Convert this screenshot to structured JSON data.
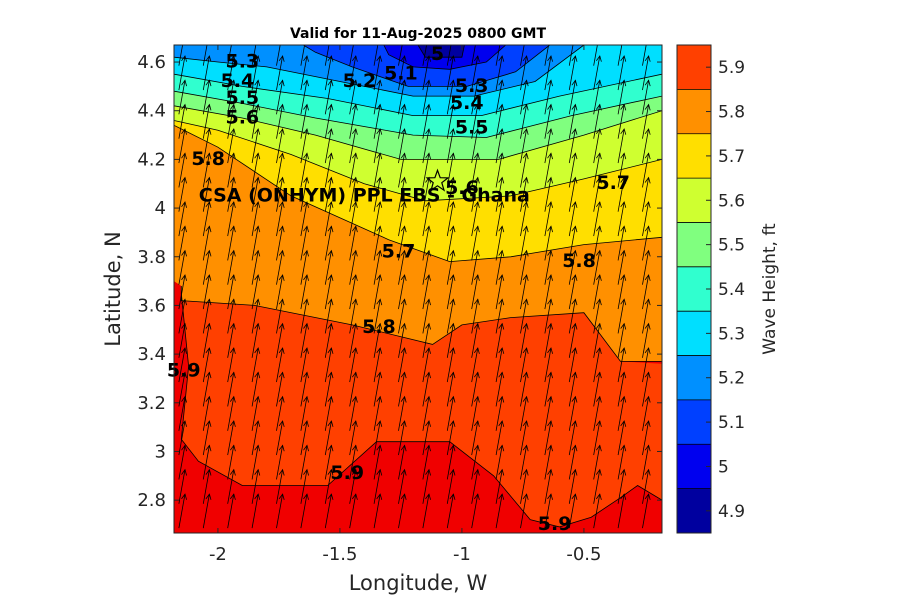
{
  "chart_data": {
    "type": "contour",
    "title": "Valid for 11-Aug-2025 0800 GMT",
    "xlabel": "Longitude, W",
    "ylabel": "Latitude, N",
    "colorbar_label": "Wave Height, ft",
    "xlim": [
      -2.18,
      -0.18
    ],
    "ylim": [
      2.665,
      4.67
    ],
    "x_ticks": [
      -2,
      -1.5,
      -1,
      -0.5
    ],
    "x_tick_labels": [
      "-2",
      "-1.5",
      "-1",
      "-0.5"
    ],
    "y_ticks": [
      2.8,
      3,
      3.2,
      3.4,
      3.6,
      3.8,
      4,
      4.2,
      4.4,
      4.6
    ],
    "y_tick_labels": [
      "2.8",
      "3",
      "3.2",
      "3.4",
      "3.6",
      "3.8",
      "4",
      "4.2",
      "4.4",
      "4.6"
    ],
    "colorbar_ticks": [
      "4.9",
      "5",
      "5.1",
      "5.2",
      "5.3",
      "5.4",
      "5.5",
      "5.6",
      "5.7",
      "5.8",
      "5.9"
    ],
    "colorbar_levels": [
      4.85,
      4.95,
      5.05,
      5.15,
      5.25,
      5.35,
      5.45,
      5.55,
      5.65,
      5.75,
      5.85,
      5.95
    ],
    "colormap": [
      "#00009f",
      "#0000ef",
      "#0040ff",
      "#0090ff",
      "#00dfff",
      "#30ffcf",
      "#80ff7f",
      "#cfff30",
      "#ffdf00",
      "#ff9000",
      "#ff4000",
      "#f00000"
    ],
    "contour_bands": [
      {
        "level": 5.0,
        "color": "#00009f",
        "polygon": [
          [
            -1.18,
            4.67
          ],
          [
            -0.99,
            4.67
          ],
          [
            -1.0,
            4.62
          ],
          [
            -1.15,
            4.62
          ]
        ]
      },
      {
        "level": 5.1,
        "color": "#0000ef",
        "polygon": [
          [
            -1.32,
            4.67
          ],
          [
            -0.82,
            4.67
          ],
          [
            -0.9,
            4.6
          ],
          [
            -1.05,
            4.57
          ],
          [
            -1.2,
            4.58
          ],
          [
            -1.3,
            4.63
          ]
        ]
      },
      {
        "level": 5.2,
        "color": "#0040ff",
        "polygon": [
          [
            -1.65,
            4.67
          ],
          [
            -0.64,
            4.67
          ],
          [
            -0.78,
            4.56
          ],
          [
            -0.98,
            4.5
          ],
          [
            -1.22,
            4.5
          ],
          [
            -1.45,
            4.58
          ],
          [
            -1.6,
            4.64
          ]
        ]
      },
      {
        "level": 5.3,
        "color": "#0090ff",
        "polygon": [
          [
            -2.18,
            4.67
          ],
          [
            -0.5,
            4.67
          ],
          [
            -0.7,
            4.52
          ],
          [
            -0.95,
            4.46
          ],
          [
            -1.2,
            4.46
          ],
          [
            -1.5,
            4.52
          ],
          [
            -1.8,
            4.58
          ],
          [
            -2.0,
            4.6
          ],
          [
            -2.18,
            4.62
          ]
        ]
      },
      {
        "level": 5.4,
        "color": "#00dfff",
        "polygon": [
          [
            -2.18,
            4.67
          ],
          [
            -0.18,
            4.67
          ],
          [
            -0.18,
            4.55
          ],
          [
            -0.6,
            4.46
          ],
          [
            -0.92,
            4.38
          ],
          [
            -1.2,
            4.38
          ],
          [
            -1.55,
            4.45
          ],
          [
            -1.9,
            4.5
          ],
          [
            -2.18,
            4.55
          ]
        ]
      },
      {
        "level": 5.5,
        "color": "#30ffcf",
        "polygon": [
          [
            -2.18,
            4.67
          ],
          [
            -0.18,
            4.67
          ],
          [
            -0.18,
            4.46
          ],
          [
            -0.55,
            4.38
          ],
          [
            -0.9,
            4.29
          ],
          [
            -1.2,
            4.3
          ],
          [
            -1.6,
            4.37
          ],
          [
            -1.9,
            4.43
          ],
          [
            -2.18,
            4.48
          ]
        ]
      },
      {
        "level": 5.6,
        "color": "#80ff7f",
        "polygon": [
          [
            -2.18,
            4.67
          ],
          [
            -0.18,
            4.67
          ],
          [
            -0.18,
            4.4
          ],
          [
            -0.5,
            4.3
          ],
          [
            -0.85,
            4.2
          ],
          [
            -1.25,
            4.2
          ],
          [
            -1.6,
            4.3
          ],
          [
            -1.9,
            4.37
          ],
          [
            -2.18,
            4.42
          ]
        ]
      },
      {
        "level": 5.7,
        "color": "#cfff30",
        "polygon": [
          [
            -2.18,
            4.67
          ],
          [
            -0.18,
            4.67
          ],
          [
            -0.18,
            4.2
          ],
          [
            -0.5,
            4.12
          ],
          [
            -0.8,
            4.05
          ],
          [
            -1.15,
            4.03
          ],
          [
            -1.4,
            4.1
          ],
          [
            -1.7,
            4.22
          ],
          [
            -2.0,
            4.32
          ],
          [
            -2.18,
            4.36
          ]
        ]
      },
      {
        "level": 5.8,
        "color": "#ffdf00",
        "polygon": [
          [
            -2.18,
            4.67
          ],
          [
            -0.18,
            4.67
          ],
          [
            -0.18,
            3.88
          ],
          [
            -0.5,
            3.85
          ],
          [
            -0.8,
            3.8
          ],
          [
            -1.05,
            3.78
          ],
          [
            -1.3,
            3.87
          ],
          [
            -1.7,
            4.05
          ],
          [
            -2.0,
            4.25
          ],
          [
            -2.18,
            4.34
          ]
        ]
      },
      {
        "level": 5.9,
        "color": "#ff9000",
        "polygon": [
          [
            -2.18,
            4.67
          ],
          [
            -0.18,
            4.67
          ],
          [
            -0.18,
            3.37
          ],
          [
            -0.35,
            3.37
          ],
          [
            -0.5,
            3.57
          ],
          [
            -0.8,
            3.55
          ],
          [
            -1.0,
            3.52
          ],
          [
            -1.12,
            3.44
          ],
          [
            -1.45,
            3.52
          ],
          [
            -1.85,
            3.6
          ],
          [
            -2.15,
            3.62
          ],
          [
            -2.15,
            3.68
          ],
          [
            -2.18,
            3.7
          ]
        ]
      },
      {
        "level": 5.95,
        "color": "#ff4000",
        "polygon": [
          [
            -2.15,
            3.65
          ],
          [
            -2.12,
            3.35
          ],
          [
            -2.15,
            3.05
          ],
          [
            -2.08,
            2.96
          ],
          [
            -1.9,
            2.86
          ],
          [
            -1.55,
            2.86
          ],
          [
            -1.35,
            3.04
          ],
          [
            -1.05,
            3.04
          ],
          [
            -0.87,
            2.9
          ],
          [
            -0.72,
            2.72
          ],
          [
            -0.6,
            2.69
          ],
          [
            -0.47,
            2.73
          ],
          [
            -0.35,
            2.81
          ],
          [
            -0.28,
            2.86
          ],
          [
            -0.18,
            2.8
          ],
          [
            -0.18,
            3.36
          ],
          [
            -0.35,
            3.37
          ],
          [
            -0.5,
            3.57
          ],
          [
            -0.8,
            3.55
          ],
          [
            -1.0,
            3.52
          ],
          [
            -1.12,
            3.44
          ],
          [
            -1.45,
            3.52
          ],
          [
            -1.85,
            3.6
          ],
          [
            -2.15,
            3.62
          ]
        ]
      }
    ],
    "contour_lines": [
      [
        [
          -1.18,
          4.67
        ],
        [
          -1.15,
          4.62
        ],
        [
          -1.0,
          4.62
        ],
        [
          -0.99,
          4.67
        ]
      ],
      [
        [
          -1.32,
          4.67
        ],
        [
          -1.3,
          4.63
        ],
        [
          -1.2,
          4.58
        ],
        [
          -1.05,
          4.57
        ],
        [
          -0.9,
          4.6
        ],
        [
          -0.82,
          4.67
        ]
      ],
      [
        [
          -1.65,
          4.67
        ],
        [
          -1.6,
          4.64
        ],
        [
          -1.45,
          4.58
        ],
        [
          -1.22,
          4.5
        ],
        [
          -0.98,
          4.5
        ],
        [
          -0.78,
          4.56
        ],
        [
          -0.64,
          4.67
        ]
      ],
      [
        [
          -2.18,
          4.62
        ],
        [
          -2.0,
          4.6
        ],
        [
          -1.8,
          4.58
        ],
        [
          -1.5,
          4.52
        ],
        [
          -1.2,
          4.46
        ],
        [
          -0.95,
          4.46
        ],
        [
          -0.7,
          4.52
        ],
        [
          -0.5,
          4.67
        ]
      ],
      [
        [
          -2.18,
          4.55
        ],
        [
          -1.9,
          4.5
        ],
        [
          -1.55,
          4.45
        ],
        [
          -1.2,
          4.38
        ],
        [
          -0.92,
          4.38
        ],
        [
          -0.6,
          4.46
        ],
        [
          -0.18,
          4.55
        ]
      ],
      [
        [
          -2.18,
          4.48
        ],
        [
          -1.9,
          4.43
        ],
        [
          -1.6,
          4.37
        ],
        [
          -1.2,
          4.3
        ],
        [
          -0.9,
          4.29
        ],
        [
          -0.55,
          4.38
        ],
        [
          -0.18,
          4.46
        ]
      ],
      [
        [
          -2.18,
          4.42
        ],
        [
          -1.9,
          4.37
        ],
        [
          -1.6,
          4.3
        ],
        [
          -1.25,
          4.2
        ],
        [
          -0.85,
          4.2
        ],
        [
          -0.5,
          4.3
        ],
        [
          -0.18,
          4.4
        ]
      ],
      [
        [
          -2.18,
          4.36
        ],
        [
          -2.0,
          4.32
        ],
        [
          -1.7,
          4.22
        ],
        [
          -1.4,
          4.1
        ],
        [
          -1.15,
          4.03
        ],
        [
          -0.8,
          4.05
        ],
        [
          -0.5,
          4.12
        ],
        [
          -0.18,
          4.2
        ]
      ],
      [
        [
          -2.18,
          4.34
        ],
        [
          -2.0,
          4.25
        ],
        [
          -1.7,
          4.05
        ],
        [
          -1.3,
          3.87
        ],
        [
          -1.05,
          3.78
        ],
        [
          -0.8,
          3.8
        ],
        [
          -0.5,
          3.85
        ],
        [
          -0.18,
          3.88
        ]
      ],
      [
        [
          -2.15,
          3.68
        ],
        [
          -2.15,
          3.62
        ],
        [
          -1.85,
          3.6
        ],
        [
          -1.45,
          3.52
        ],
        [
          -1.12,
          3.44
        ],
        [
          -1.0,
          3.52
        ],
        [
          -0.8,
          3.55
        ],
        [
          -0.5,
          3.57
        ],
        [
          -0.35,
          3.37
        ],
        [
          -0.18,
          3.37
        ]
      ],
      [
        [
          -2.15,
          3.65
        ],
        [
          -2.12,
          3.35
        ],
        [
          -2.15,
          3.05
        ],
        [
          -2.08,
          2.96
        ],
        [
          -1.9,
          2.86
        ],
        [
          -1.55,
          2.86
        ],
        [
          -1.35,
          3.04
        ],
        [
          -1.05,
          3.04
        ],
        [
          -0.87,
          2.9
        ],
        [
          -0.72,
          2.72
        ],
        [
          -0.6,
          2.69
        ],
        [
          -0.47,
          2.73
        ],
        [
          -0.35,
          2.81
        ],
        [
          -0.28,
          2.86
        ],
        [
          -0.18,
          2.8
        ]
      ]
    ],
    "contour_labels": [
      {
        "text": "5",
        "x": -1.1,
        "y": 4.63
      },
      {
        "text": "5.1",
        "x": -1.25,
        "y": 4.55
      },
      {
        "text": "5.2",
        "x": -1.42,
        "y": 4.52
      },
      {
        "text": "5.3",
        "x": -1.9,
        "y": 4.6
      },
      {
        "text": "5.3",
        "x": -0.96,
        "y": 4.5
      },
      {
        "text": "5.4",
        "x": -1.92,
        "y": 4.52
      },
      {
        "text": "5.4",
        "x": -0.98,
        "y": 4.43
      },
      {
        "text": "5.5",
        "x": -1.9,
        "y": 4.45
      },
      {
        "text": "5.5",
        "x": -0.96,
        "y": 4.33
      },
      {
        "text": "5.6",
        "x": -1.9,
        "y": 4.37
      },
      {
        "text": "5.6",
        "x": -1.0,
        "y": 4.08
      },
      {
        "text": "5.7",
        "x": -0.38,
        "y": 4.1
      },
      {
        "text": "5.7",
        "x": -1.26,
        "y": 3.82
      },
      {
        "text": "5.8",
        "x": -2.04,
        "y": 4.2
      },
      {
        "text": "5.8",
        "x": -0.52,
        "y": 3.78
      },
      {
        "text": "5.8",
        "x": -1.34,
        "y": 3.51
      },
      {
        "text": "5.9",
        "x": -2.14,
        "y": 3.33
      },
      {
        "text": "5.9",
        "x": -1.47,
        "y": 2.91
      },
      {
        "text": "5.9",
        "x": -0.62,
        "y": 2.7
      }
    ],
    "station": {
      "x": -1.1,
      "y": 4.11,
      "label": "CSA (ONHYM) PPL EBS  - Ghana"
    },
    "vector_field": {
      "direction": "north-northeast",
      "dx": 0.025,
      "dy": 0.14,
      "x_step": 0.1,
      "y_step": 0.1
    }
  }
}
